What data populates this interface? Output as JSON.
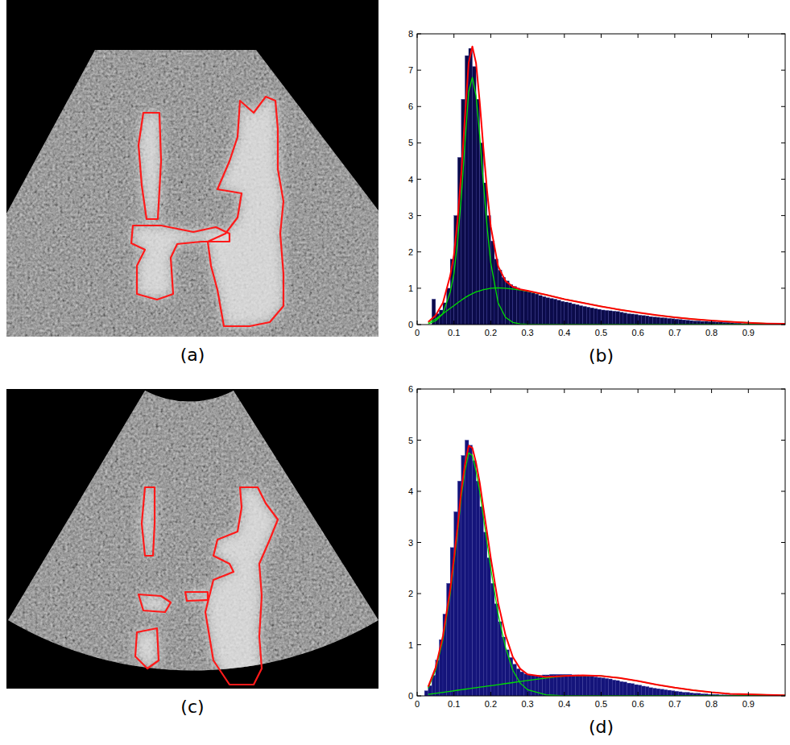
{
  "images": [
    {
      "label": "(a)"
    },
    {
      "label": "(c)"
    }
  ],
  "chart_data": [
    {
      "type": "histogram",
      "title": "(b)",
      "color": "#0b0b4a",
      "bins": [
        0.04,
        0.05,
        0.06,
        0.07,
        0.08,
        0.09,
        0.1,
        0.11,
        0.12,
        0.13,
        0.14,
        0.15,
        0.16,
        0.17,
        0.18,
        0.19,
        0.2,
        0.21,
        0.22,
        0.23,
        0.24,
        0.25,
        0.26,
        0.27,
        0.28,
        0.29,
        0.3,
        0.31,
        0.32,
        0.33,
        0.34,
        0.35,
        0.36,
        0.37,
        0.38,
        0.39,
        0.4,
        0.41,
        0.42,
        0.43,
        0.44,
        0.45,
        0.46,
        0.47,
        0.48,
        0.49,
        0.5,
        0.51,
        0.52,
        0.53,
        0.54,
        0.55,
        0.56,
        0.57,
        0.58,
        0.59,
        0.6,
        0.61,
        0.62,
        0.63,
        0.64,
        0.65,
        0.66,
        0.67,
        0.68,
        0.69,
        0.7,
        0.71,
        0.72,
        0.73,
        0.74,
        0.75,
        0.76,
        0.77,
        0.78,
        0.79,
        0.8,
        0.81,
        0.82,
        0.83,
        0.84,
        0.85,
        0.86,
        0.87,
        0.88,
        0.89,
        0.9,
        0.91,
        0.92,
        0.93,
        0.94,
        0.95,
        0.96,
        0.97,
        0.98,
        0.99,
        1.0
      ],
      "values": [
        0.7,
        0.3,
        0.4,
        0.6,
        1.0,
        1.8,
        3.0,
        4.6,
        6.2,
        7.4,
        7.6,
        7.1,
        6.2,
        5.0,
        3.9,
        3.0,
        2.3,
        1.8,
        1.5,
        1.3,
        1.2,
        1.1,
        1.05,
        1.0,
        0.95,
        0.92,
        0.9,
        0.87,
        0.84,
        0.8,
        0.77,
        0.74,
        0.72,
        0.7,
        0.67,
        0.64,
        0.62,
        0.6,
        0.57,
        0.55,
        0.52,
        0.5,
        0.48,
        0.46,
        0.44,
        0.42,
        0.4,
        0.39,
        0.38,
        0.37,
        0.36,
        0.34,
        0.32,
        0.3,
        0.29,
        0.28,
        0.26,
        0.25,
        0.24,
        0.22,
        0.21,
        0.2,
        0.19,
        0.18,
        0.17,
        0.16,
        0.15,
        0.14,
        0.13,
        0.12,
        0.11,
        0.1,
        0.1,
        0.09,
        0.09,
        0.08,
        0.08,
        0.07,
        0.07,
        0.06,
        0.06,
        0.05,
        0.04,
        0.04,
        0.03,
        0.03,
        0.02,
        0.02,
        0.02,
        0.02,
        0.01,
        0.01,
        0.01,
        0.01,
        0.01,
        0.01
      ],
      "x": [
        0.03,
        0.05,
        0.07,
        0.09,
        0.1,
        0.11,
        0.12,
        0.13,
        0.14,
        0.15,
        0.16,
        0.17,
        0.18,
        0.19,
        0.2,
        0.22,
        0.24,
        0.26,
        0.28,
        0.3,
        0.35,
        0.4,
        0.45,
        0.5,
        0.55,
        0.6,
        0.65,
        0.7,
        0.75,
        0.8,
        0.85,
        0.9,
        0.95,
        1.0
      ],
      "series": [
        {
          "type": "line",
          "color": "#00dd00",
          "values": [
            0.02,
            0.1,
            0.3,
            0.9,
            1.4,
            2.3,
            3.5,
            5.0,
            6.4,
            6.8,
            6.3,
            5.2,
            3.9,
            2.7,
            1.7,
            0.6,
            0.2,
            0.06,
            0.02,
            0.01,
            0,
            0,
            0,
            0,
            0,
            0,
            0,
            0,
            0,
            0,
            0,
            0,
            0,
            0
          ]
        },
        {
          "type": "line",
          "color": "#00dd00",
          "values": [
            0.05,
            0.15,
            0.3,
            0.45,
            0.52,
            0.6,
            0.67,
            0.74,
            0.8,
            0.85,
            0.9,
            0.93,
            0.96,
            0.98,
            1.0,
            1.01,
            1.0,
            0.98,
            0.95,
            0.92,
            0.82,
            0.7,
            0.6,
            0.5,
            0.41,
            0.33,
            0.26,
            0.2,
            0.15,
            0.11,
            0.08,
            0.05,
            0.03,
            0.02
          ]
        },
        {
          "type": "line",
          "color": "#ff0000",
          "values": [
            0.07,
            0.25,
            0.6,
            1.35,
            1.92,
            2.9,
            4.17,
            5.74,
            7.2,
            7.65,
            7.2,
            6.13,
            4.86,
            3.68,
            2.7,
            1.61,
            1.2,
            1.04,
            0.97,
            0.93,
            0.82,
            0.7,
            0.6,
            0.5,
            0.41,
            0.33,
            0.26,
            0.2,
            0.15,
            0.11,
            0.08,
            0.05,
            0.03,
            0.02
          ]
        }
      ],
      "xlim": [
        0,
        1
      ],
      "ylim": [
        0,
        8
      ],
      "xticks": [
        0,
        0.1,
        0.2,
        0.3,
        0.4,
        0.5,
        0.6,
        0.7,
        0.8,
        0.9
      ],
      "yticks": [
        0,
        1,
        2,
        3,
        4,
        5,
        6,
        7,
        8
      ]
    },
    {
      "type": "histogram",
      "title": "(d)",
      "color": "#14147a",
      "bins": [
        0.02,
        0.03,
        0.04,
        0.05,
        0.06,
        0.07,
        0.08,
        0.09,
        0.1,
        0.11,
        0.12,
        0.13,
        0.14,
        0.15,
        0.16,
        0.17,
        0.18,
        0.19,
        0.2,
        0.21,
        0.22,
        0.23,
        0.24,
        0.25,
        0.26,
        0.27,
        0.28,
        0.29,
        0.3,
        0.31,
        0.32,
        0.33,
        0.34,
        0.35,
        0.36,
        0.37,
        0.38,
        0.39,
        0.4,
        0.41,
        0.42,
        0.43,
        0.44,
        0.45,
        0.46,
        0.47,
        0.48,
        0.49,
        0.5,
        0.51,
        0.52,
        0.53,
        0.54,
        0.55,
        0.56,
        0.57,
        0.58,
        0.59,
        0.6,
        0.61,
        0.62,
        0.63,
        0.64,
        0.65,
        0.66,
        0.67,
        0.68,
        0.69,
        0.7,
        0.71,
        0.72,
        0.73,
        0.74,
        0.75,
        0.76,
        0.77,
        0.78,
        0.79,
        0.8,
        0.81,
        0.82,
        0.83,
        0.84,
        0.85,
        0.86,
        0.87,
        0.88,
        0.89,
        0.9,
        0.91,
        0.92,
        0.93,
        0.94,
        0.95,
        0.96,
        0.97,
        0.98,
        0.99,
        1.0
      ],
      "values": [
        0.1,
        0.2,
        0.4,
        0.7,
        1.1,
        1.6,
        2.2,
        2.9,
        3.6,
        4.2,
        4.7,
        5.0,
        4.9,
        4.6,
        4.2,
        3.7,
        3.2,
        2.7,
        2.2,
        1.8,
        1.45,
        1.15,
        0.9,
        0.75,
        0.62,
        0.53,
        0.47,
        0.43,
        0.41,
        0.4,
        0.4,
        0.4,
        0.41,
        0.41,
        0.42,
        0.42,
        0.42,
        0.42,
        0.42,
        0.42,
        0.41,
        0.41,
        0.4,
        0.4,
        0.39,
        0.38,
        0.37,
        0.36,
        0.35,
        0.34,
        0.33,
        0.31,
        0.3,
        0.28,
        0.27,
        0.25,
        0.24,
        0.22,
        0.21,
        0.19,
        0.18,
        0.16,
        0.15,
        0.14,
        0.13,
        0.12,
        0.11,
        0.1,
        0.09,
        0.08,
        0.07,
        0.07,
        0.06,
        0.05,
        0.05,
        0.04,
        0.04,
        0.03,
        0.03,
        0.03,
        0.02,
        0.02,
        0.02,
        0.02,
        0.02,
        0.02,
        0.02,
        0.02,
        0.02,
        0.02,
        0.02,
        0.02,
        0.02,
        0.01,
        0.01,
        0.01,
        0.01,
        0.01
      ],
      "x": [
        0.03,
        0.05,
        0.07,
        0.09,
        0.1,
        0.11,
        0.12,
        0.13,
        0.14,
        0.15,
        0.16,
        0.17,
        0.18,
        0.19,
        0.2,
        0.22,
        0.24,
        0.26,
        0.28,
        0.3,
        0.35,
        0.4,
        0.45,
        0.5,
        0.55,
        0.6,
        0.65,
        0.7,
        0.75,
        0.8,
        0.85,
        0.9,
        0.95,
        1.0
      ],
      "series": [
        {
          "type": "line",
          "color": "#00dd00",
          "values": [
            0.15,
            0.5,
            1.1,
            2.0,
            2.6,
            3.2,
            3.9,
            4.4,
            4.75,
            4.7,
            4.4,
            4.0,
            3.5,
            3.0,
            2.5,
            1.6,
            0.95,
            0.5,
            0.25,
            0.12,
            0.02,
            0,
            0,
            0,
            0,
            0,
            0,
            0,
            0,
            0,
            0,
            0,
            0,
            0
          ]
        },
        {
          "type": "line",
          "color": "#00dd00",
          "values": [
            0.03,
            0.05,
            0.07,
            0.09,
            0.1,
            0.11,
            0.12,
            0.13,
            0.14,
            0.15,
            0.16,
            0.17,
            0.18,
            0.19,
            0.2,
            0.22,
            0.24,
            0.26,
            0.28,
            0.3,
            0.35,
            0.39,
            0.4,
            0.39,
            0.35,
            0.29,
            0.22,
            0.16,
            0.11,
            0.07,
            0.04,
            0.03,
            0.02,
            0.01
          ]
        },
        {
          "type": "line",
          "color": "#ff0000",
          "values": [
            0.18,
            0.55,
            1.17,
            2.09,
            2.7,
            3.31,
            4.02,
            4.53,
            4.89,
            4.85,
            4.56,
            4.17,
            3.68,
            3.19,
            2.7,
            1.82,
            1.19,
            0.76,
            0.53,
            0.42,
            0.37,
            0.39,
            0.4,
            0.39,
            0.35,
            0.29,
            0.22,
            0.16,
            0.11,
            0.07,
            0.04,
            0.03,
            0.02,
            0.01
          ]
        }
      ],
      "xlim": [
        0,
        1
      ],
      "ylim": [
        0,
        6
      ],
      "xticks": [
        0,
        0.1,
        0.2,
        0.3,
        0.4,
        0.5,
        0.6,
        0.7,
        0.8,
        0.9
      ],
      "yticks": [
        0,
        1,
        2,
        3,
        4,
        5,
        6
      ]
    }
  ]
}
